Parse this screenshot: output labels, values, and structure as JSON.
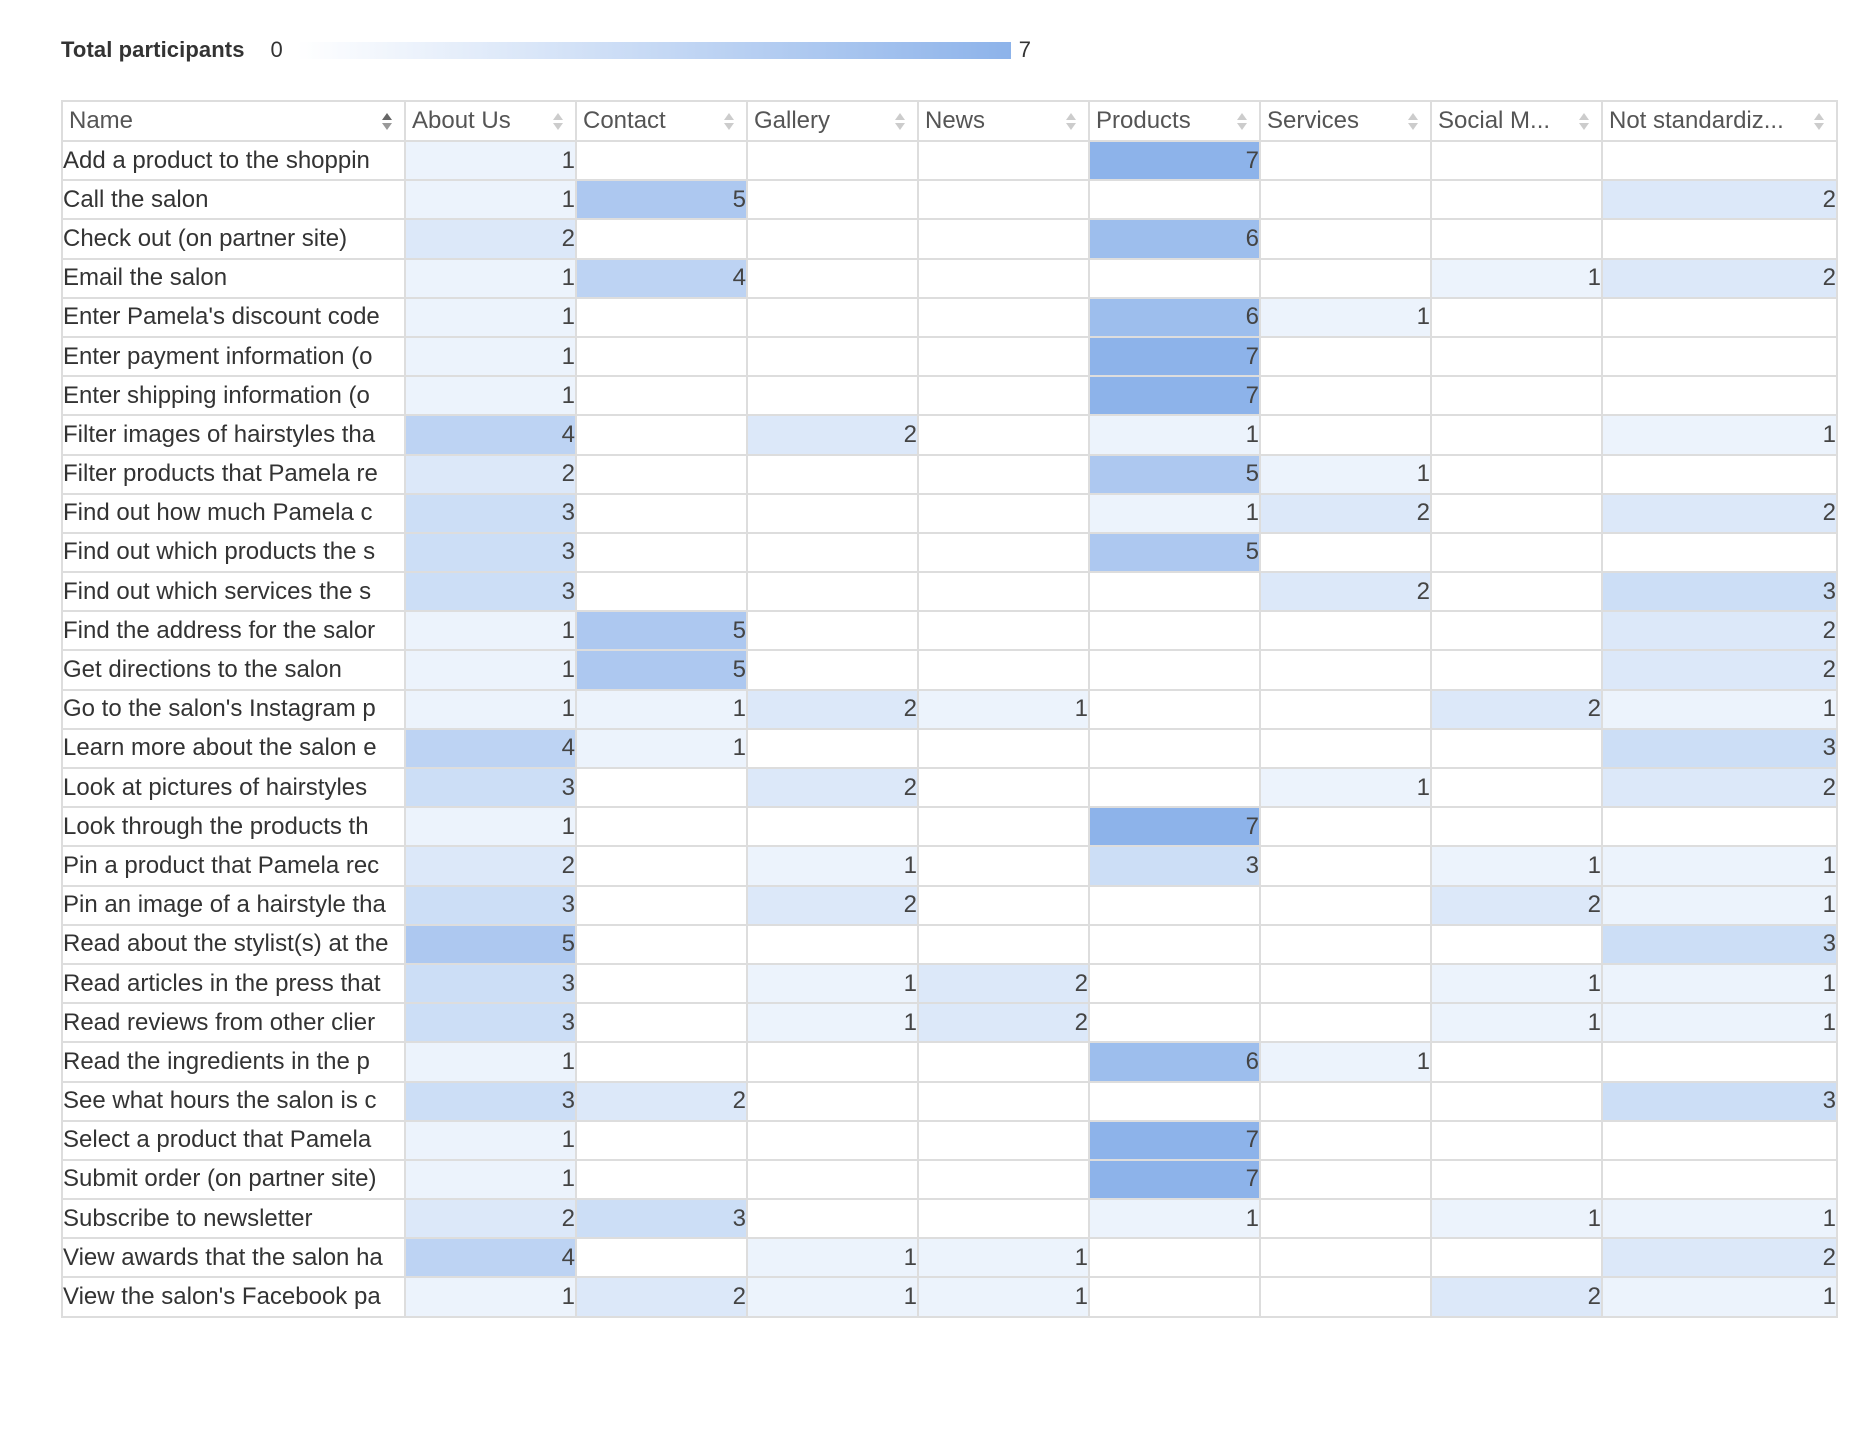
{
  "legend": {
    "label": "Total participants",
    "min": "0",
    "max": "7",
    "colors": [
      "#ffffff",
      "#8db3ea"
    ]
  },
  "chart_data": {
    "type": "heatmap",
    "columns": [
      {
        "label": "Name",
        "sort": "ascending"
      },
      {
        "label": "About Us",
        "sort": "none"
      },
      {
        "label": "Contact",
        "sort": "none"
      },
      {
        "label": "Gallery",
        "sort": "none"
      },
      {
        "label": "News",
        "sort": "none"
      },
      {
        "label": "Products",
        "sort": "none"
      },
      {
        "label": "Services",
        "sort": "none"
      },
      {
        "label": "Social M...",
        "sort": "none"
      },
      {
        "label": "Not standardiz...",
        "sort": "none"
      }
    ],
    "vmin": 0,
    "vmax": 7,
    "rows": [
      {
        "name": "Add a product to the shoppin",
        "values": [
          1,
          null,
          null,
          null,
          7,
          null,
          null,
          null
        ]
      },
      {
        "name": "Call the salon",
        "values": [
          1,
          5,
          null,
          null,
          null,
          null,
          null,
          2
        ]
      },
      {
        "name": "Check out (on partner site)",
        "values": [
          2,
          null,
          null,
          null,
          6,
          null,
          null,
          null
        ]
      },
      {
        "name": "Email the salon",
        "values": [
          1,
          4,
          null,
          null,
          null,
          null,
          1,
          2
        ]
      },
      {
        "name": "Enter Pamela's discount code",
        "values": [
          1,
          null,
          null,
          null,
          6,
          1,
          null,
          null
        ]
      },
      {
        "name": "Enter payment information (o",
        "values": [
          1,
          null,
          null,
          null,
          7,
          null,
          null,
          null
        ]
      },
      {
        "name": "Enter shipping information (o",
        "values": [
          1,
          null,
          null,
          null,
          7,
          null,
          null,
          null
        ]
      },
      {
        "name": "Filter images of hairstyles tha",
        "values": [
          4,
          null,
          2,
          null,
          1,
          null,
          null,
          1
        ]
      },
      {
        "name": "Filter products that Pamela re",
        "values": [
          2,
          null,
          null,
          null,
          5,
          1,
          null,
          null
        ]
      },
      {
        "name": "Find out how much Pamela c",
        "values": [
          3,
          null,
          null,
          null,
          1,
          2,
          null,
          2
        ]
      },
      {
        "name": "Find out which products the s",
        "values": [
          3,
          null,
          null,
          null,
          5,
          null,
          null,
          null
        ]
      },
      {
        "name": "Find out which services the s",
        "values": [
          3,
          null,
          null,
          null,
          null,
          2,
          null,
          3
        ]
      },
      {
        "name": "Find the address for the salor",
        "values": [
          1,
          5,
          null,
          null,
          null,
          null,
          null,
          2
        ]
      },
      {
        "name": "Get directions to the salon",
        "values": [
          1,
          5,
          null,
          null,
          null,
          null,
          null,
          2
        ]
      },
      {
        "name": "Go to the salon's Instagram p",
        "values": [
          1,
          1,
          2,
          1,
          null,
          null,
          2,
          1
        ]
      },
      {
        "name": "Learn more about the salon e",
        "values": [
          4,
          1,
          null,
          null,
          null,
          null,
          null,
          3
        ]
      },
      {
        "name": "Look at pictures of hairstyles",
        "values": [
          3,
          null,
          2,
          null,
          null,
          1,
          null,
          2
        ]
      },
      {
        "name": "Look through the products th",
        "values": [
          1,
          null,
          null,
          null,
          7,
          null,
          null,
          null
        ]
      },
      {
        "name": "Pin a product that Pamela rec",
        "values": [
          2,
          null,
          1,
          null,
          3,
          null,
          1,
          1
        ]
      },
      {
        "name": "Pin an image of a hairstyle tha",
        "values": [
          3,
          null,
          2,
          null,
          null,
          null,
          2,
          1
        ]
      },
      {
        "name": "Read about the stylist(s) at the",
        "values": [
          5,
          null,
          null,
          null,
          null,
          null,
          null,
          3
        ]
      },
      {
        "name": "Read articles in the press that",
        "values": [
          3,
          null,
          1,
          2,
          null,
          null,
          1,
          1
        ]
      },
      {
        "name": "Read reviews from other clier",
        "values": [
          3,
          null,
          1,
          2,
          null,
          null,
          1,
          1
        ]
      },
      {
        "name": "Read the ingredients in the p",
        "values": [
          1,
          null,
          null,
          null,
          6,
          1,
          null,
          null
        ]
      },
      {
        "name": "See what hours the salon is c",
        "values": [
          3,
          2,
          null,
          null,
          null,
          null,
          null,
          3
        ]
      },
      {
        "name": "Select a product that Pamela",
        "values": [
          1,
          null,
          null,
          null,
          7,
          null,
          null,
          null
        ]
      },
      {
        "name": "Submit order (on partner site)",
        "values": [
          1,
          null,
          null,
          null,
          7,
          null,
          null,
          null
        ]
      },
      {
        "name": "Subscribe to newsletter",
        "values": [
          2,
          3,
          null,
          null,
          1,
          null,
          1,
          1
        ]
      },
      {
        "name": "View awards that the salon ha",
        "values": [
          4,
          null,
          1,
          1,
          null,
          null,
          null,
          2
        ]
      },
      {
        "name": "View the salon's Facebook pa",
        "values": [
          1,
          2,
          1,
          1,
          null,
          null,
          2,
          1
        ]
      }
    ]
  }
}
